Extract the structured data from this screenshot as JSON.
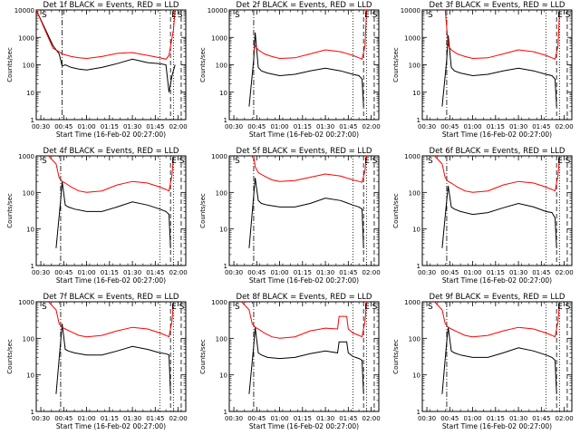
{
  "x_tick_labels": [
    "00:30",
    "00:45",
    "01:00",
    "01:15",
    "01:30",
    "01:45",
    "02:00"
  ],
  "y_tick_labels_top_decade_10000": [
    "1",
    "10",
    "100",
    "1000",
    "10000"
  ],
  "y_tick_labels_top_decade_1000": [
    "1",
    "10",
    "100",
    "1000"
  ],
  "ylabel": "Counts/sec",
  "xlabel": "Start Time (16-Feb-02 00:27:00)",
  "colors": {
    "events": "#000000",
    "lld": "#ff0000"
  },
  "chart_data": [
    {
      "type": "line",
      "title": "Det 1f BLACK = Events, RED = LLD",
      "xlabel": "Start Time (16-Feb-02 00:27:00)",
      "ylabel": "Counts/sec",
      "ylog": true,
      "ylim": [
        1,
        10000
      ],
      "xlim_minutes": [
        27,
        125
      ],
      "x_unit": "minutes from 00:00 UT",
      "markers": [
        {
          "label": "S",
          "time": "00:30"
        },
        {
          "label": "E",
          "time": "01:55"
        },
        {
          "label": "S",
          "time": "01:59"
        }
      ],
      "vlines_dashdot": [
        "00:44"
      ],
      "vlines_dotted": [
        "01:48",
        "01:57"
      ],
      "vlines_dashed": [
        "01:55",
        "02:02"
      ],
      "series": [
        {
          "name": "Events",
          "color": "#000000",
          "x": [
            27,
            38,
            42,
            44,
            46,
            50,
            55,
            60,
            70,
            80,
            90,
            100,
            108,
            112,
            114,
            116,
            118
          ],
          "y": [
            10000,
            500,
            250,
            90,
            100,
            80,
            70,
            65,
            80,
            110,
            160,
            120,
            110,
            100,
            10,
            40,
            100
          ]
        },
        {
          "name": "LLD",
          "color": "#ff0000",
          "x": [
            27,
            38,
            42,
            44,
            50,
            55,
            60,
            70,
            80,
            90,
            100,
            108,
            112,
            114,
            117,
            118
          ],
          "y": [
            10000,
            400,
            300,
            250,
            200,
            180,
            170,
            200,
            260,
            280,
            220,
            180,
            160,
            220,
            2000,
            10000
          ]
        }
      ]
    },
    {
      "type": "line",
      "title": "Det 2f BLACK = Events, RED = LLD",
      "xlabel": "Start Time (16-Feb-02 00:27:00)",
      "ylabel": "Counts/sec",
      "ylog": true,
      "ylim": [
        1,
        10000
      ],
      "xlim_minutes": [
        27,
        125
      ],
      "x_unit": "minutes from 00:00 UT",
      "markers": [
        {
          "label": "S",
          "time": "00:30"
        },
        {
          "label": "E",
          "time": "01:55"
        },
        {
          "label": "S",
          "time": "02:00"
        }
      ],
      "vlines_dashdot": [
        "00:43"
      ],
      "vlines_dotted": [
        "01:48",
        "01:57"
      ],
      "vlines_dashed": [
        "01:55",
        "02:02"
      ],
      "series": [
        {
          "name": "Events",
          "color": "#000000",
          "x": [
            40,
            43,
            44,
            46,
            48,
            52,
            60,
            70,
            80,
            90,
            100,
            108,
            112,
            114,
            115
          ],
          "y": [
            3,
            150,
            1500,
            80,
            60,
            50,
            40,
            45,
            60,
            75,
            60,
            45,
            40,
            30,
            3
          ]
        },
        {
          "name": "LLD",
          "color": "#ff0000",
          "x": [
            43,
            44,
            46,
            50,
            55,
            60,
            70,
            80,
            90,
            100,
            108,
            112,
            114,
            116,
            117
          ],
          "y": [
            300,
            500,
            350,
            250,
            200,
            170,
            180,
            250,
            350,
            300,
            220,
            180,
            160,
            500,
            10000
          ]
        }
      ]
    },
    {
      "type": "line",
      "title": "Det 3f BLACK = Events, RED = LLD",
      "xlabel": "Start Time (16-Feb-02 00:27:00)",
      "ylabel": "Counts/sec",
      "ylog": true,
      "ylim": [
        1,
        10000
      ],
      "xlim_minutes": [
        27,
        125
      ],
      "x_unit": "minutes from 00:00 UT",
      "markers": [
        {
          "label": "S",
          "time": "00:30"
        },
        {
          "label": "E",
          "time": "01:55"
        },
        {
          "label": "S",
          "time": "02:00"
        }
      ],
      "vlines_dashdot": [
        "00:43"
      ],
      "vlines_dotted": [
        "01:48",
        "01:57"
      ],
      "vlines_dashed": [
        "01:55",
        "02:02"
      ],
      "series": [
        {
          "name": "Events",
          "color": "#000000",
          "x": [
            40,
            43,
            44,
            46,
            48,
            52,
            60,
            70,
            80,
            90,
            100,
            108,
            112,
            114,
            115
          ],
          "y": [
            3,
            150,
            1200,
            80,
            60,
            50,
            40,
            45,
            60,
            75,
            60,
            45,
            40,
            30,
            3
          ]
        },
        {
          "name": "LLD",
          "color": "#ff0000",
          "x": [
            42,
            44,
            46,
            50,
            55,
            60,
            70,
            80,
            90,
            100,
            108,
            112,
            114,
            116,
            117
          ],
          "y": [
            10000,
            500,
            350,
            250,
            200,
            170,
            180,
            250,
            350,
            300,
            220,
            180,
            160,
            500,
            10000
          ]
        }
      ]
    },
    {
      "type": "line",
      "title": "Det 4f BLACK = Events, RED = LLD",
      "xlabel": "Start Time (16-Feb-02 00:27:00)",
      "ylabel": "Counts/sec",
      "ylog": true,
      "ylim": [
        1,
        1000
      ],
      "xlim_minutes": [
        27,
        125
      ],
      "x_unit": "minutes from 00:00 UT",
      "markers": [
        {
          "label": "S",
          "time": "00:30"
        },
        {
          "label": "E",
          "time": "01:55"
        },
        {
          "label": "S",
          "time": "02:00"
        }
      ],
      "vlines_dashdot": [
        "00:43"
      ],
      "vlines_dotted": [
        "01:48",
        "01:57"
      ],
      "vlines_dashed": [
        "01:55",
        "02:02"
      ],
      "series": [
        {
          "name": "Events",
          "color": "#000000",
          "x": [
            40,
            43,
            44,
            46,
            48,
            52,
            60,
            70,
            80,
            90,
            100,
            108,
            112,
            114,
            115
          ],
          "y": [
            3,
            60,
            200,
            45,
            40,
            35,
            30,
            30,
            40,
            55,
            45,
            35,
            30,
            25,
            3
          ]
        },
        {
          "name": "LLD",
          "color": "#ff0000",
          "x": [
            35,
            40,
            42,
            44,
            46,
            50,
            55,
            60,
            70,
            80,
            90,
            100,
            108,
            112,
            114,
            116,
            117
          ],
          "y": [
            1000,
            600,
            250,
            200,
            180,
            140,
            110,
            100,
            110,
            160,
            200,
            180,
            140,
            120,
            110,
            300,
            1000
          ]
        }
      ]
    },
    {
      "type": "line",
      "title": "Det 5f BLACK = Events, RED = LLD",
      "xlabel": "Start Time (16-Feb-02 00:27:00)",
      "ylabel": "Counts/sec",
      "ylog": true,
      "ylim": [
        1,
        1000
      ],
      "xlim_minutes": [
        27,
        125
      ],
      "x_unit": "minutes from 00:00 UT",
      "markers": [
        {
          "label": "S",
          "time": "00:30"
        },
        {
          "label": "E",
          "time": "01:55"
        },
        {
          "label": "S",
          "time": "02:00"
        }
      ],
      "vlines_dashdot": [
        "00:43"
      ],
      "vlines_dotted": [
        "01:48",
        "01:57"
      ],
      "vlines_dashed": [
        "01:55",
        "02:02"
      ],
      "series": [
        {
          "name": "Events",
          "color": "#000000",
          "x": [
            40,
            43,
            44,
            46,
            48,
            52,
            60,
            70,
            80,
            90,
            100,
            108,
            112,
            114,
            115
          ],
          "y": [
            3,
            80,
            250,
            60,
            50,
            45,
            40,
            40,
            50,
            70,
            60,
            45,
            40,
            35,
            3
          ]
        },
        {
          "name": "LLD",
          "color": "#ff0000",
          "x": [
            43,
            44,
            46,
            50,
            55,
            60,
            70,
            80,
            90,
            100,
            108,
            112,
            114,
            116,
            117
          ],
          "y": [
            1000,
            500,
            350,
            280,
            220,
            200,
            210,
            260,
            320,
            280,
            220,
            200,
            190,
            400,
            1000
          ]
        }
      ]
    },
    {
      "type": "line",
      "title": "Det 6f BLACK = Events, RED = LLD",
      "xlabel": "Start Time (16-Feb-02 00:27:00)",
      "ylabel": "Counts/sec",
      "ylog": true,
      "ylim": [
        1,
        1000
      ],
      "xlim_minutes": [
        27,
        125
      ],
      "x_unit": "minutes from 00:00 UT",
      "markers": [
        {
          "label": "S",
          "time": "00:30"
        },
        {
          "label": "E",
          "time": "01:55"
        },
        {
          "label": "S",
          "time": "02:00"
        }
      ],
      "vlines_dashdot": [
        "00:43"
      ],
      "vlines_dotted": [
        "01:48",
        "01:57"
      ],
      "vlines_dashed": [
        "01:55",
        "02:02"
      ],
      "series": [
        {
          "name": "Events",
          "color": "#000000",
          "x": [
            40,
            43,
            44,
            46,
            48,
            52,
            60,
            70,
            80,
            90,
            100,
            108,
            112,
            114,
            115
          ],
          "y": [
            3,
            60,
            150,
            40,
            35,
            30,
            25,
            28,
            38,
            50,
            40,
            30,
            28,
            20,
            3
          ]
        },
        {
          "name": "LLD",
          "color": "#ff0000",
          "x": [
            35,
            40,
            42,
            44,
            46,
            50,
            55,
            60,
            70,
            80,
            90,
            100,
            108,
            112,
            114,
            116,
            117
          ],
          "y": [
            1000,
            600,
            250,
            200,
            180,
            140,
            110,
            100,
            110,
            160,
            200,
            180,
            140,
            120,
            110,
            300,
            1000
          ]
        }
      ]
    },
    {
      "type": "line",
      "title": "Det 7f BLACK = Events, RED = LLD",
      "xlabel": "Start Time (16-Feb-02 00:27:00)",
      "ylabel": "Counts/sec",
      "ylog": true,
      "ylim": [
        1,
        1000
      ],
      "xlim_minutes": [
        27,
        125
      ],
      "x_unit": "minutes from 00:00 UT",
      "markers": [
        {
          "label": "S",
          "time": "00:30"
        },
        {
          "label": "E",
          "time": "01:55"
        },
        {
          "label": "S",
          "time": "02:00"
        }
      ],
      "vlines_dashdot": [
        "00:43"
      ],
      "vlines_dotted": [
        "01:48",
        "01:57"
      ],
      "vlines_dashed": [
        "01:55",
        "02:02"
      ],
      "series": [
        {
          "name": "Events",
          "color": "#000000",
          "x": [
            40,
            43,
            44,
            46,
            48,
            52,
            60,
            70,
            80,
            90,
            100,
            108,
            112,
            114,
            115
          ],
          "y": [
            3,
            80,
            250,
            50,
            45,
            40,
            35,
            35,
            45,
            60,
            50,
            40,
            38,
            35,
            3
          ]
        },
        {
          "name": "LLD",
          "color": "#ff0000",
          "x": [
            35,
            40,
            42,
            44,
            46,
            50,
            55,
            60,
            70,
            80,
            90,
            100,
            108,
            112,
            114,
            116,
            117
          ],
          "y": [
            1000,
            600,
            250,
            200,
            180,
            150,
            120,
            110,
            120,
            160,
            200,
            180,
            140,
            120,
            110,
            300,
            1000
          ]
        }
      ]
    },
    {
      "type": "line",
      "title": "Det 8f BLACK = Events, RED = LLD",
      "xlabel": "Start Time (16-Feb-02 00:27:00)",
      "ylabel": "Counts/sec",
      "ylog": true,
      "ylim": [
        1,
        1000
      ],
      "xlim_minutes": [
        27,
        125
      ],
      "x_unit": "minutes from 00:00 UT",
      "markers": [
        {
          "label": "S",
          "time": "00:30"
        },
        {
          "label": "E",
          "time": "01:55"
        },
        {
          "label": "S",
          "time": "02:00"
        }
      ],
      "vlines_dashdot": [
        "00:43"
      ],
      "vlines_dotted": [
        "01:48",
        "01:57"
      ],
      "vlines_dashed": [
        "01:55",
        "02:02"
      ],
      "series": [
        {
          "name": "Events",
          "color": "#000000",
          "x": [
            40,
            43,
            44,
            46,
            48,
            52,
            60,
            70,
            80,
            90,
            98,
            99,
            104,
            105,
            108,
            112,
            114,
            115
          ],
          "y": [
            3,
            60,
            200,
            40,
            35,
            30,
            28,
            30,
            38,
            45,
            40,
            80,
            80,
            40,
            32,
            28,
            25,
            3
          ]
        },
        {
          "name": "LLD",
          "color": "#ff0000",
          "x": [
            35,
            40,
            42,
            44,
            46,
            50,
            55,
            60,
            70,
            80,
            90,
            98,
            99,
            104,
            105,
            108,
            112,
            114,
            116,
            117
          ],
          "y": [
            1000,
            600,
            250,
            200,
            180,
            140,
            110,
            100,
            110,
            160,
            190,
            180,
            400,
            400,
            180,
            140,
            120,
            110,
            300,
            1000
          ]
        }
      ]
    },
    {
      "type": "line",
      "title": "Det 9f BLACK = Events, RED = LLD",
      "xlabel": "Start Time (16-Feb-02 00:27:00)",
      "ylabel": "Counts/sec",
      "ylog": true,
      "ylim": [
        1,
        1000
      ],
      "xlim_minutes": [
        27,
        125
      ],
      "x_unit": "minutes from 00:00 UT",
      "markers": [
        {
          "label": "S",
          "time": "00:30"
        },
        {
          "label": "E",
          "time": "01:55"
        },
        {
          "label": "S",
          "time": "02:00"
        }
      ],
      "vlines_dashdot": [
        "00:43"
      ],
      "vlines_dotted": [
        "01:48",
        "01:57"
      ],
      "vlines_dashed": [
        "01:55",
        "02:02"
      ],
      "series": [
        {
          "name": "Events",
          "color": "#000000",
          "x": [
            40,
            43,
            44,
            46,
            48,
            52,
            60,
            70,
            80,
            90,
            100,
            108,
            112,
            114,
            115
          ],
          "y": [
            3,
            80,
            200,
            45,
            40,
            35,
            30,
            30,
            40,
            55,
            45,
            35,
            30,
            25,
            3
          ]
        },
        {
          "name": "LLD",
          "color": "#ff0000",
          "x": [
            35,
            40,
            42,
            44,
            46,
            50,
            55,
            60,
            70,
            80,
            90,
            100,
            108,
            112,
            114,
            116,
            117
          ],
          "y": [
            1000,
            600,
            250,
            200,
            180,
            150,
            120,
            110,
            120,
            160,
            200,
            180,
            140,
            120,
            110,
            300,
            1000
          ]
        }
      ]
    }
  ]
}
